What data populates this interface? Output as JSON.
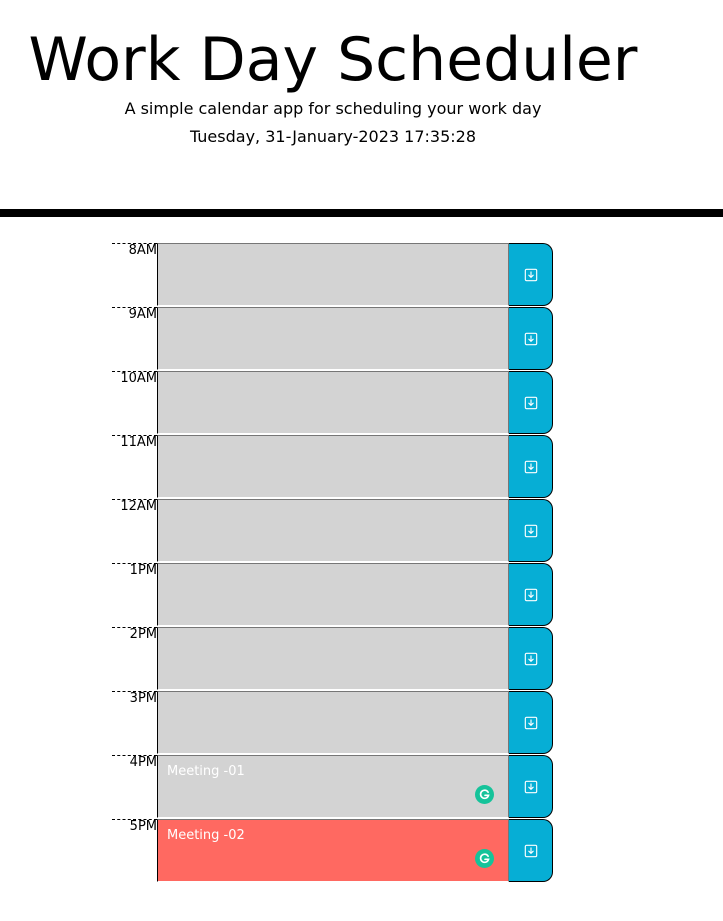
{
  "header": {
    "title": "Work Day Scheduler",
    "subtitle": "A simple calendar app for scheduling your work day",
    "current_day": "Tuesday, 31-January-2023 17:35:28"
  },
  "colors": {
    "past_future": "#d3d3d3",
    "present": "#ff6961",
    "save_button": "#06aed5",
    "grammarly": "#15c39a"
  },
  "schedule": {
    "rows": [
      {
        "hour": "8AM",
        "text": "",
        "status": "past"
      },
      {
        "hour": "9AM",
        "text": "",
        "status": "past"
      },
      {
        "hour": "10AM",
        "text": "",
        "status": "past"
      },
      {
        "hour": "11AM",
        "text": "",
        "status": "past"
      },
      {
        "hour": "12AM",
        "text": "",
        "status": "past"
      },
      {
        "hour": "1PM",
        "text": "",
        "status": "past"
      },
      {
        "hour": "2PM",
        "text": "",
        "status": "past"
      },
      {
        "hour": "3PM",
        "text": "",
        "status": "past"
      },
      {
        "hour": "4PM",
        "text": "Meeting -01",
        "status": "past",
        "grammarly": true
      },
      {
        "hour": "5PM",
        "text": "Meeting -02",
        "status": "present",
        "grammarly": true
      }
    ],
    "save_icon": "save-icon",
    "grammarly_icon": "grammarly-icon"
  }
}
